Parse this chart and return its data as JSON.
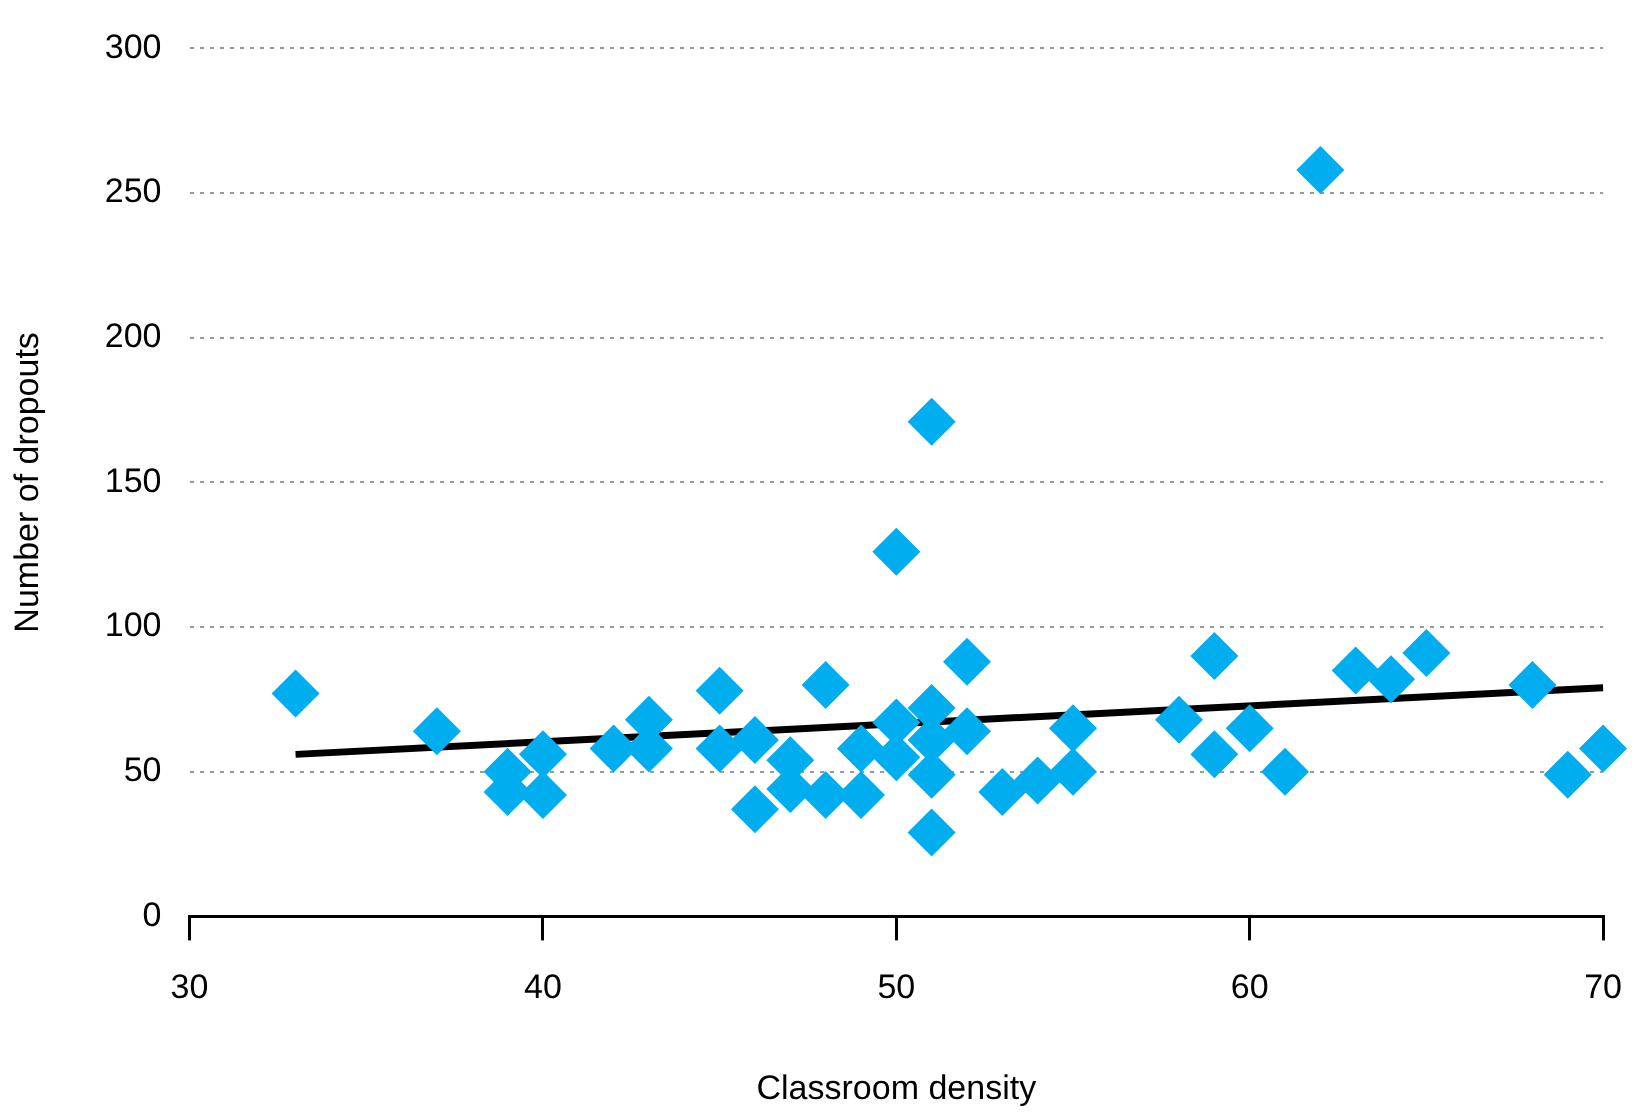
{
  "chart_data": {
    "type": "scatter",
    "xlabel": "Classroom density",
    "ylabel": "Number of dropouts",
    "xlim": [
      30,
      70
    ],
    "xticks": [
      30,
      40,
      50,
      60,
      70
    ],
    "ylim": [
      0,
      300
    ],
    "yticks": [
      0,
      50,
      100,
      150,
      200,
      250,
      300
    ],
    "grid": "y",
    "legend": false,
    "marker": "diamond",
    "series": [
      {
        "color": "#00aeef",
        "x": [
          33,
          37,
          39,
          39,
          40,
          40,
          42,
          43,
          43,
          45,
          45,
          46,
          46,
          47,
          47,
          48,
          48,
          49,
          49,
          50,
          50,
          50,
          51,
          51,
          51,
          51,
          51,
          52,
          52,
          53,
          54,
          55,
          55,
          58,
          59,
          59,
          60,
          61,
          62,
          63,
          64,
          65,
          68,
          69,
          70
        ],
        "values": [
          77,
          64,
          50,
          43,
          56,
          42,
          58,
          68,
          58,
          78,
          58,
          61,
          37,
          54,
          44,
          80,
          42,
          58,
          42,
          126,
          67,
          55,
          171,
          72,
          61,
          49,
          29,
          88,
          64,
          43,
          47,
          65,
          50,
          68,
          90,
          56,
          65,
          50,
          258,
          85,
          82,
          91,
          80,
          49,
          58
        ]
      },
      {
        "type": "line",
        "color": "#000000",
        "marker": "none",
        "line_style": "solid",
        "x": [
          33,
          70
        ],
        "values": [
          56,
          79
        ]
      }
    ]
  }
}
